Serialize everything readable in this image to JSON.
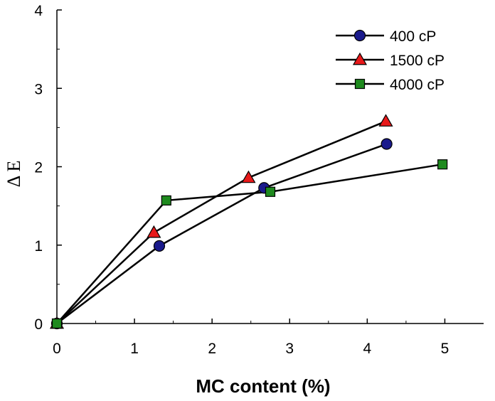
{
  "chart_data": {
    "type": "line",
    "title": "",
    "xlabel": "MC content (%)",
    "ylabel": "Δ E",
    "xlim": [
      0,
      5.5
    ],
    "ylim": [
      0,
      4
    ],
    "xticks": [
      "0",
      "1",
      "2",
      "3",
      "4",
      "5"
    ],
    "yticks": [
      "0",
      "1",
      "2",
      "3",
      "4"
    ],
    "grid": false,
    "legend_position": "top-right",
    "series": [
      {
        "name": "400 cP",
        "marker": "circle",
        "color": "#1a1a8c",
        "x": [
          0,
          1.32,
          2.67,
          4.25
        ],
        "y": [
          0,
          0.99,
          1.73,
          2.29
        ]
      },
      {
        "name": "1500 cP",
        "marker": "triangle",
        "color": "#e8191a",
        "x": [
          0,
          1.25,
          2.47,
          4.24
        ],
        "y": [
          0,
          1.16,
          1.86,
          2.58
        ]
      },
      {
        "name": "4000 cP",
        "marker": "square",
        "color": "#1e8a1e",
        "x": [
          0,
          1.41,
          2.75,
          4.97
        ],
        "y": [
          0,
          1.57,
          1.68,
          2.03
        ]
      }
    ]
  }
}
